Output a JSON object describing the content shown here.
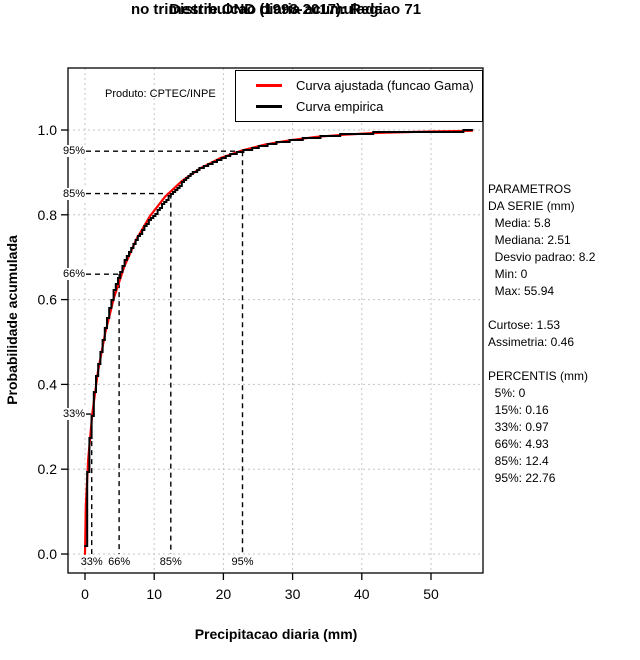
{
  "chart_data": {
    "type": "line",
    "title_line1": "Distribuicao diaria acumulada",
    "title_line2": "no trimestre OND (1998-2017): Regiao 71",
    "xlabel": "Precipitacao diaria (mm)",
    "ylabel": "Probabilidade acumulada",
    "annotation": "Produto: CPTEC/INPE",
    "x_ticks": [
      "0",
      "10",
      "20",
      "30",
      "40",
      "50"
    ],
    "y_ticks": [
      "0.0",
      "0.2",
      "0.4",
      "0.6",
      "0.8",
      "1.0"
    ],
    "xlim": [
      0,
      56
    ],
    "ylim": [
      0,
      1
    ],
    "grid": true,
    "legend_position": "top-right",
    "colors": {
      "fitted": "#ff0000",
      "empirical": "#000000",
      "grid": "#c4c4c4"
    },
    "series": [
      {
        "name": "Curva ajustada (funcao Gama)",
        "color": "#ff0000",
        "style": "smooth",
        "x": [
          0,
          0.12,
          0.46,
          1.04,
          1.85,
          2.9,
          4.17,
          5.68,
          7.42,
          9.39,
          11.59,
          14.02,
          16.69,
          19.59,
          22.72,
          26.08,
          29.67,
          33.49,
          37.55,
          41.84,
          46.36,
          51.1,
          55.94
        ],
        "p": [
          0,
          0.113,
          0.223,
          0.329,
          0.428,
          0.52,
          0.604,
          0.678,
          0.742,
          0.797,
          0.843,
          0.88,
          0.91,
          0.934,
          0.952,
          0.966,
          0.976,
          0.984,
          0.989,
          0.993,
          0.995,
          0.997,
          0.998
        ]
      },
      {
        "name": "Curva empirica",
        "color": "#000000",
        "style": "step",
        "x": [
          0,
          0.05,
          0.16,
          0.3,
          0.5,
          0.7,
          0.97,
          1.3,
          1.7,
          2.1,
          2.51,
          3.0,
          3.6,
          4.2,
          4.93,
          5.8,
          6.8,
          8.0,
          9.0,
          10.0,
          11.2,
          12.4,
          13.8,
          15.2,
          16.8,
          18.5,
          20.3,
          22.76,
          24.5,
          26.5,
          28.5,
          31,
          34,
          37,
          40,
          43,
          46,
          49,
          52,
          55.94
        ],
        "p": [
          0.02,
          0.105,
          0.15,
          0.19,
          0.245,
          0.29,
          0.33,
          0.385,
          0.43,
          0.465,
          0.5,
          0.545,
          0.585,
          0.625,
          0.66,
          0.695,
          0.725,
          0.758,
          0.782,
          0.8,
          0.825,
          0.85,
          0.872,
          0.895,
          0.912,
          0.925,
          0.938,
          0.95,
          0.958,
          0.966,
          0.972,
          0.978,
          0.9835,
          0.9885,
          0.992,
          0.994,
          0.9955,
          0.9965,
          0.997,
          0.998
        ]
      }
    ],
    "percentiles": [
      {
        "label": "33%",
        "value": 0.97,
        "prob": 0.33
      },
      {
        "label": "66%",
        "value": 4.93,
        "prob": 0.66
      },
      {
        "label": "85%",
        "value": 12.4,
        "prob": 0.85
      },
      {
        "label": "95%",
        "value": 22.76,
        "prob": 0.95
      }
    ]
  },
  "stats_panel": {
    "lines": [
      "PARAMETROS",
      "DA SERIE (mm)",
      "  Media: 5.8",
      "  Mediana: 2.51",
      "  Desvio padrao: 8.2",
      "  Min: 0",
      "  Max: 55.94",
      "",
      "Curtose: 1.53",
      "Assimetria: 0.46",
      "",
      "PERCENTIS (mm)",
      "  5%: 0",
      "  15%: 0.16",
      "  33%: 0.97",
      "  66%: 4.93",
      "  85%: 12.4",
      "  95%: 22.76"
    ]
  }
}
